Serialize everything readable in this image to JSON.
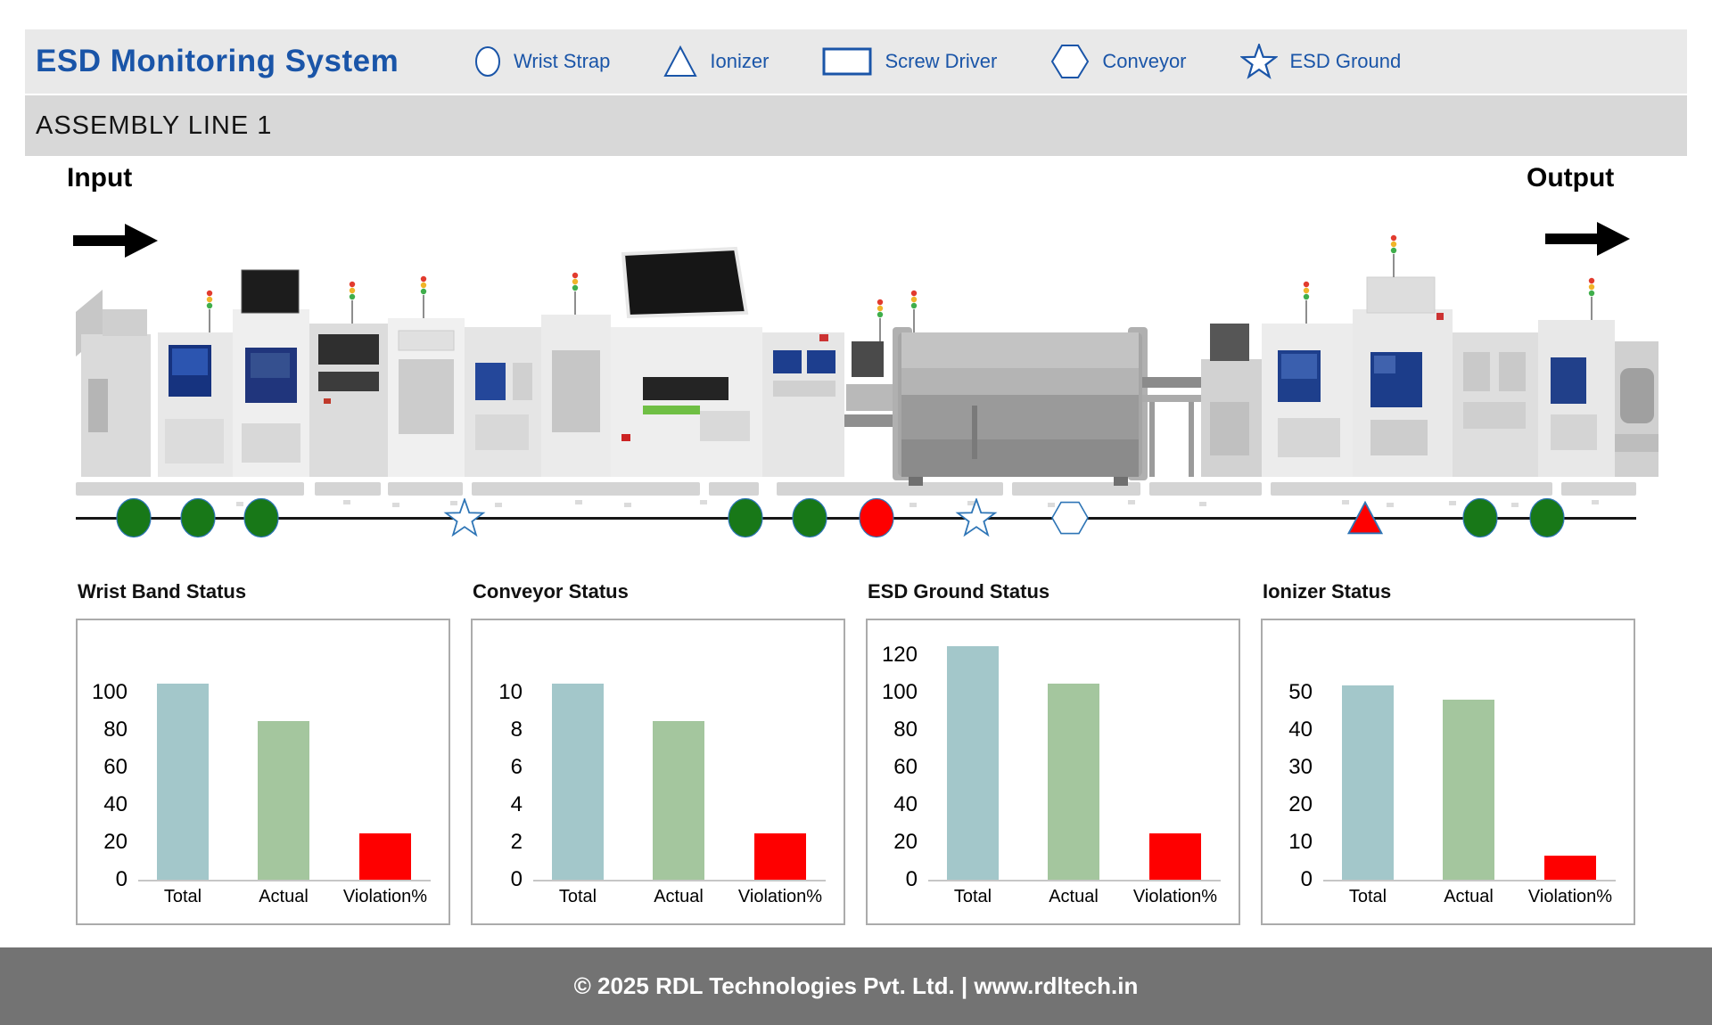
{
  "header": {
    "title": "ESD Monitoring System",
    "legend": [
      {
        "id": "wrist-strap",
        "label": "Wrist Strap",
        "shape": "circle"
      },
      {
        "id": "ionizer",
        "label": "Ionizer",
        "shape": "triangle"
      },
      {
        "id": "screw-driver",
        "label": "Screw Driver",
        "shape": "rect"
      },
      {
        "id": "conveyor",
        "label": "Conveyor",
        "shape": "hexagon"
      },
      {
        "id": "esd-ground",
        "label": "ESD Ground",
        "shape": "star"
      }
    ],
    "accent_color": "#1a55a8"
  },
  "assembly_bar": {
    "label": "ASSEMBLY LINE 1"
  },
  "flow": {
    "input_label": "Input",
    "output_label": "Output"
  },
  "status_line": {
    "colors": {
      "ok": "#187818",
      "violation": "#fe0000",
      "outline": "#ffffff",
      "stroke": "#2e75b6"
    },
    "markers": [
      {
        "type": "wrist-strap",
        "shape": "circle",
        "status": "ok",
        "left_pct": 3.7
      },
      {
        "type": "wrist-strap",
        "shape": "circle",
        "status": "ok",
        "left_pct": 7.8
      },
      {
        "type": "wrist-strap",
        "shape": "circle",
        "status": "ok",
        "left_pct": 11.9
      },
      {
        "type": "esd-ground",
        "shape": "star",
        "status": "none",
        "left_pct": 24.9
      },
      {
        "type": "wrist-strap",
        "shape": "circle",
        "status": "ok",
        "left_pct": 42.9
      },
      {
        "type": "wrist-strap",
        "shape": "circle",
        "status": "ok",
        "left_pct": 47.0
      },
      {
        "type": "wrist-strap",
        "shape": "circle",
        "status": "violation",
        "left_pct": 51.3
      },
      {
        "type": "esd-ground",
        "shape": "star",
        "status": "none",
        "left_pct": 57.7
      },
      {
        "type": "conveyor",
        "shape": "hexagon",
        "status": "none",
        "left_pct": 63.7
      },
      {
        "type": "ionizer",
        "shape": "triangle",
        "status": "violation",
        "left_pct": 82.6
      },
      {
        "type": "wrist-strap",
        "shape": "circle",
        "status": "ok",
        "left_pct": 90.0
      },
      {
        "type": "wrist-strap",
        "shape": "circle",
        "status": "ok",
        "left_pct": 94.3
      }
    ]
  },
  "chart_data": [
    {
      "type": "bar",
      "title": "Wrist Band Status",
      "categories": [
        "Total",
        "Actual",
        "Violation%"
      ],
      "values": [
        105,
        85,
        25
      ],
      "ticks": [
        0,
        20,
        40,
        60,
        80,
        100
      ],
      "ylim": [
        0,
        110
      ],
      "grid": false,
      "legend": "none"
    },
    {
      "type": "bar",
      "title": "Conveyor Status",
      "categories": [
        "Total",
        "Actual",
        "Violation%"
      ],
      "values": [
        10.5,
        8.5,
        2.5
      ],
      "ticks": [
        0,
        2,
        4,
        6,
        8,
        10
      ],
      "ylim": [
        0,
        11
      ],
      "grid": false,
      "legend": "none"
    },
    {
      "type": "bar",
      "title": "ESD Ground Status",
      "categories": [
        "Total",
        "Actual",
        "Violation%"
      ],
      "values": [
        125,
        105,
        25
      ],
      "ticks": [
        0,
        20,
        40,
        60,
        80,
        100,
        120
      ],
      "ylim": [
        0,
        130
      ],
      "grid": false,
      "legend": "none"
    },
    {
      "type": "bar",
      "title": "Ionizer Status",
      "categories": [
        "Total",
        "Actual",
        "Violation%"
      ],
      "values": [
        52,
        48,
        6.5
      ],
      "ticks": [
        0,
        10,
        20,
        30,
        40,
        50
      ],
      "ylim": [
        0,
        55
      ],
      "grid": false,
      "legend": "none"
    }
  ],
  "chart_style": {
    "bar_colors": [
      "#a3c7ca",
      "#a4c69e",
      "#fe0000"
    ],
    "axis_color": "#c6c6c6"
  },
  "footer": {
    "text": "© 2025 RDL Technologies Pvt. Ltd. | www.rdltech.in"
  }
}
